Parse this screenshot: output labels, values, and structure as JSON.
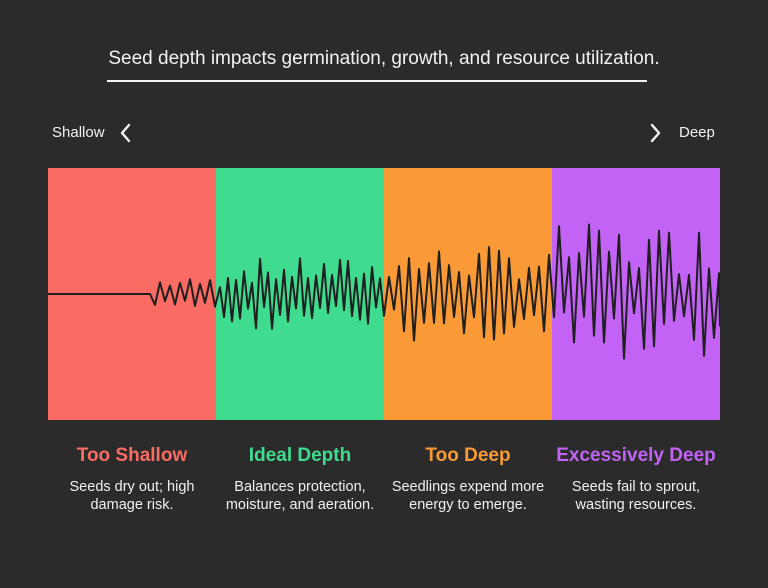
{
  "header": {
    "title": "Seed depth impacts germination, growth, and resource utilization."
  },
  "axis": {
    "left_label": "Shallow",
    "right_label": "Deep",
    "left_icon": "chevron-left-icon",
    "right_icon": "chevron-right-icon"
  },
  "zones": [
    {
      "title": "Too Shallow",
      "description": "Seeds dry out; high damage risk.",
      "color": "#f96b63",
      "title_color": "#f96b63"
    },
    {
      "title": "Ideal Depth",
      "description": "Balances protection, moisture, and aeration.",
      "color": "#3fdc8f",
      "title_color": "#3fdc8f"
    },
    {
      "title": "Too Deep",
      "description": "Seedlings expend more energy to emerge.",
      "color": "#f99a36",
      "title_color": "#f99a36"
    },
    {
      "title": "Excessively Deep",
      "description": "Seeds fail to sprout, wasting resources.",
      "color": "#c263f5",
      "title_color": "#c263f5"
    }
  ],
  "colors": {
    "background": "#2b2b2b",
    "waveform": "#1f1f1f"
  }
}
